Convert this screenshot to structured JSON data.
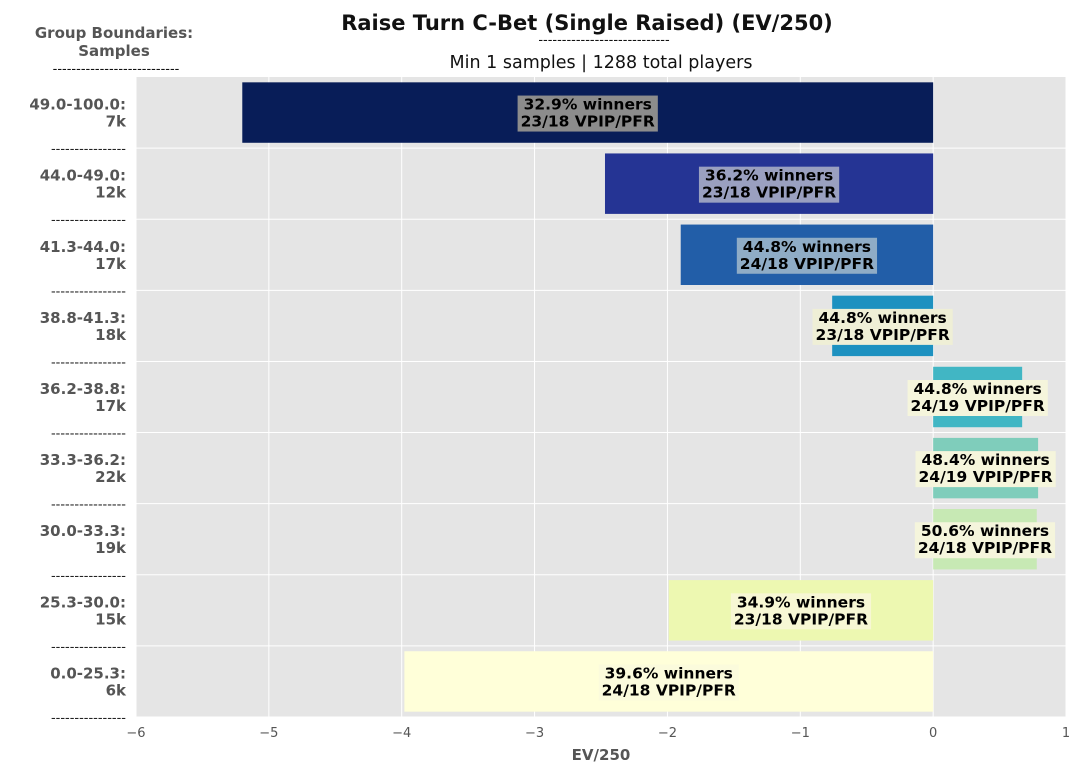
{
  "chart_data": {
    "type": "bar",
    "orientation": "horizontal",
    "title": "Raise Turn C-Bet (Single Raised) (EV/250)",
    "title_divider": "----------------------------",
    "subtitle": "Min 1 samples | 1288 total players",
    "group_header": [
      "Group Boundaries:",
      "Samples"
    ],
    "group_header_divider": "---------------------------",
    "row_separator": "----------------",
    "xlabel": "EV/250",
    "xlim": [
      -6,
      1
    ],
    "xticks": [
      -6,
      -5,
      -4,
      -3,
      -2,
      -1,
      0,
      1
    ],
    "xtick_labels": [
      "−6",
      "−5",
      "−4",
      "−3",
      "−2",
      "−1",
      "0",
      "1"
    ],
    "grid": true,
    "categories": [
      {
        "range": "49.0-100.0:",
        "samples": "7k",
        "value": -5.2,
        "color": "#081d58",
        "line1": "32.9% winners",
        "line2": "23/18 VPIP/PFR",
        "box": "#8c8c8c"
      },
      {
        "range": "44.0-49.0:",
        "samples": "12k",
        "value": -2.47,
        "color": "#253494",
        "line1": "36.2% winners",
        "line2": "23/18 VPIP/PFR",
        "box": "#9aa0c0"
      },
      {
        "range": "41.3-44.0:",
        "samples": "17k",
        "value": -1.9,
        "color": "#225ea8",
        "line1": "44.8% winners",
        "line2": "24/18 VPIP/PFR",
        "box": "#8facc6"
      },
      {
        "range": "38.8-41.3:",
        "samples": "18k",
        "value": -0.76,
        "color": "#1d91c0",
        "line1": "44.8% winners",
        "line2": "23/18 VPIP/PFR",
        "box": "#efefd6"
      },
      {
        "range": "36.2-38.8:",
        "samples": "17k",
        "value": 0.67,
        "color": "#41b6c4",
        "line1": "44.8% winners",
        "line2": "24/19 VPIP/PFR",
        "box": "#f5f5dc"
      },
      {
        "range": "33.3-36.2:",
        "samples": "22k",
        "value": 0.79,
        "color": "#7fcdbb",
        "line1": "48.4% winners",
        "line2": "24/19 VPIP/PFR",
        "box": "#f5f5dc"
      },
      {
        "range": "30.0-33.3:",
        "samples": "19k",
        "value": 0.78,
        "color": "#c7e9b4",
        "line1": "50.6% winners",
        "line2": "24/18 VPIP/PFR",
        "box": "#f5f5dc"
      },
      {
        "range": "25.3-30.0:",
        "samples": "15k",
        "value": -1.99,
        "color": "#edf8b1",
        "line1": "34.9% winners",
        "line2": "23/18 VPIP/PFR",
        "box": "#f7f7d4"
      },
      {
        "range": "0.0-25.3:",
        "samples": "6k",
        "value": -3.98,
        "color": "#ffffd9",
        "line1": "39.6% winners",
        "line2": "24/18 VPIP/PFR",
        "box": "#fbfbdc"
      }
    ]
  }
}
